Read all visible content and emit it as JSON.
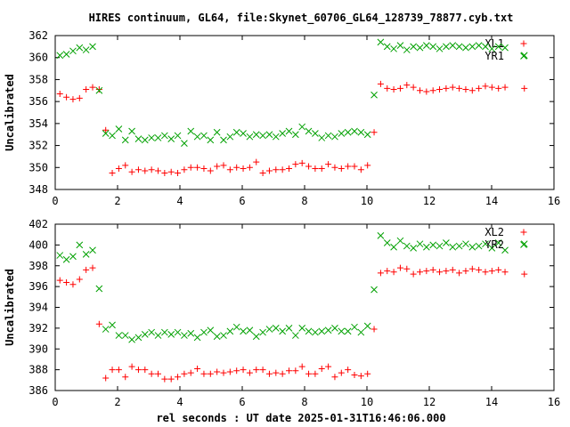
{
  "title": "HIRES continuum, GL64, file:Skynet_60706_GL64_128739_78877.cyb.txt",
  "xlabel": "rel seconds : UT date 2025-01-31T16:46:06.000",
  "colors": {
    "red": "#ff0000",
    "green": "#00a000"
  },
  "chart_data": [
    {
      "type": "scatter",
      "ylabel": "Uncalibrated",
      "xlim": [
        0,
        16
      ],
      "ylim": [
        348,
        362
      ],
      "xticks": [
        0,
        2,
        4,
        6,
        8,
        10,
        12,
        14,
        16
      ],
      "yticks": [
        348,
        350,
        352,
        354,
        356,
        358,
        360,
        362
      ],
      "grid": false,
      "legend_position": "top-right",
      "series": [
        {
          "name": "XL1",
          "marker": "plus",
          "color": "#ff0000",
          "x": [
            0.15,
            0.36,
            0.57,
            0.78,
            0.99,
            1.2,
            1.41,
            1.62,
            1.83,
            2.04,
            2.25,
            2.46,
            2.67,
            2.88,
            3.09,
            3.3,
            3.51,
            3.72,
            3.93,
            4.14,
            4.35,
            4.56,
            4.77,
            4.98,
            5.19,
            5.4,
            5.61,
            5.82,
            6.03,
            6.24,
            6.45,
            6.66,
            6.87,
            7.08,
            7.29,
            7.5,
            7.71,
            7.92,
            8.13,
            8.34,
            8.55,
            8.76,
            8.97,
            9.18,
            9.39,
            9.6,
            9.81,
            10.02,
            10.23,
            10.44,
            10.65,
            10.86,
            11.07,
            11.28,
            11.49,
            11.7,
            11.91,
            12.12,
            12.33,
            12.54,
            12.75,
            12.96,
            13.17,
            13.38,
            13.59,
            13.8,
            14.01,
            14.22,
            14.43,
            15.05
          ],
          "y": [
            356.7,
            356.4,
            356.2,
            356.3,
            357.1,
            357.3,
            357.1,
            353.4,
            349.5,
            349.9,
            350.2,
            349.6,
            349.8,
            349.7,
            349.8,
            349.7,
            349.5,
            349.6,
            349.5,
            349.8,
            350.0,
            350.0,
            349.9,
            349.7,
            350.1,
            350.2,
            349.8,
            350.0,
            349.9,
            350.0,
            350.5,
            349.5,
            349.7,
            349.8,
            349.8,
            349.9,
            350.3,
            350.4,
            350.1,
            349.9,
            349.9,
            350.3,
            350.0,
            349.9,
            350.1,
            350.1,
            349.8,
            350.2,
            353.2,
            357.6,
            357.2,
            357.1,
            357.2,
            357.5,
            357.3,
            357.0,
            356.9,
            357.0,
            357.1,
            357.2,
            357.3,
            357.2,
            357.1,
            357.0,
            357.2,
            357.4,
            357.3,
            357.2,
            357.3,
            357.2
          ],
          "note": ""
        },
        {
          "name": "YR1",
          "marker": "cross",
          "color": "#00a000",
          "x": [
            0.15,
            0.36,
            0.57,
            0.78,
            0.99,
            1.2,
            1.41,
            1.62,
            1.83,
            2.04,
            2.25,
            2.46,
            2.67,
            2.88,
            3.09,
            3.3,
            3.51,
            3.72,
            3.93,
            4.14,
            4.35,
            4.56,
            4.77,
            4.98,
            5.19,
            5.4,
            5.61,
            5.82,
            6.03,
            6.24,
            6.45,
            6.66,
            6.87,
            7.08,
            7.29,
            7.5,
            7.71,
            7.92,
            8.13,
            8.34,
            8.55,
            8.76,
            8.97,
            9.18,
            9.39,
            9.6,
            9.81,
            10.02,
            10.23,
            10.44,
            10.65,
            10.86,
            11.07,
            11.28,
            11.49,
            11.7,
            11.91,
            12.12,
            12.33,
            12.54,
            12.75,
            12.96,
            13.17,
            13.38,
            13.59,
            13.8,
            14.01,
            14.22,
            14.43,
            15.05
          ],
          "y": [
            360.2,
            360.3,
            360.6,
            360.9,
            360.7,
            361.0,
            357.0,
            353.1,
            352.9,
            353.5,
            352.5,
            353.3,
            352.6,
            352.5,
            352.7,
            352.7,
            352.9,
            352.6,
            352.9,
            352.2,
            353.3,
            352.8,
            352.9,
            352.5,
            353.2,
            352.5,
            352.8,
            353.2,
            353.1,
            352.8,
            353.0,
            352.9,
            353.0,
            352.8,
            353.1,
            353.3,
            353.0,
            353.7,
            353.3,
            353.1,
            352.7,
            352.9,
            352.8,
            353.1,
            353.2,
            353.3,
            353.2,
            353.0,
            356.6,
            361.4,
            361.0,
            360.8,
            361.1,
            360.7,
            361.0,
            360.9,
            361.1,
            361.0,
            360.8,
            361.0,
            361.1,
            361.0,
            360.9,
            361.0,
            361.1,
            361.0,
            360.8,
            361.0,
            360.9,
            360.2
          ],
          "note": ""
        }
      ]
    },
    {
      "type": "scatter",
      "ylabel": "Uncalibrated",
      "xlim": [
        0,
        16
      ],
      "ylim": [
        386,
        402
      ],
      "xticks": [
        0,
        2,
        4,
        6,
        8,
        10,
        12,
        14,
        16
      ],
      "yticks": [
        386,
        388,
        390,
        392,
        394,
        396,
        398,
        400,
        402
      ],
      "grid": false,
      "legend_position": "top-right",
      "series": [
        {
          "name": "XL2",
          "marker": "plus",
          "color": "#ff0000",
          "x": [
            0.15,
            0.36,
            0.57,
            0.78,
            0.99,
            1.2,
            1.41,
            1.62,
            1.83,
            2.04,
            2.25,
            2.46,
            2.67,
            2.88,
            3.09,
            3.3,
            3.51,
            3.72,
            3.93,
            4.14,
            4.35,
            4.56,
            4.77,
            4.98,
            5.19,
            5.4,
            5.61,
            5.82,
            6.03,
            6.24,
            6.45,
            6.66,
            6.87,
            7.08,
            7.29,
            7.5,
            7.71,
            7.92,
            8.13,
            8.34,
            8.55,
            8.76,
            8.97,
            9.18,
            9.39,
            9.6,
            9.81,
            10.02,
            10.23,
            10.44,
            10.65,
            10.86,
            11.07,
            11.28,
            11.49,
            11.7,
            11.91,
            12.12,
            12.33,
            12.54,
            12.75,
            12.96,
            13.17,
            13.38,
            13.59,
            13.8,
            14.01,
            14.22,
            14.43,
            15.05
          ],
          "y": [
            396.6,
            396.4,
            396.2,
            396.7,
            397.6,
            397.8,
            392.4,
            387.2,
            388.0,
            388.0,
            387.3,
            388.3,
            388.0,
            388.0,
            387.6,
            387.6,
            387.1,
            387.1,
            387.3,
            387.6,
            387.7,
            388.1,
            387.6,
            387.6,
            387.8,
            387.7,
            387.8,
            387.9,
            388.0,
            387.7,
            388.0,
            388.0,
            387.6,
            387.7,
            387.6,
            387.9,
            387.9,
            388.3,
            387.6,
            387.6,
            388.1,
            388.3,
            387.3,
            387.7,
            388.0,
            387.5,
            387.4,
            387.6,
            391.9,
            397.3,
            397.5,
            397.4,
            397.8,
            397.7,
            397.2,
            397.4,
            397.5,
            397.6,
            397.4,
            397.5,
            397.6,
            397.3,
            397.5,
            397.7,
            397.6,
            397.4,
            397.5,
            397.6,
            397.4,
            397.2
          ],
          "note": ""
        },
        {
          "name": "YR2",
          "marker": "cross",
          "color": "#00a000",
          "x": [
            0.15,
            0.36,
            0.57,
            0.78,
            0.99,
            1.2,
            1.41,
            1.62,
            1.83,
            2.04,
            2.25,
            2.46,
            2.67,
            2.88,
            3.09,
            3.3,
            3.51,
            3.72,
            3.93,
            4.14,
            4.35,
            4.56,
            4.77,
            4.98,
            5.19,
            5.4,
            5.61,
            5.82,
            6.03,
            6.24,
            6.45,
            6.66,
            6.87,
            7.08,
            7.29,
            7.5,
            7.71,
            7.92,
            8.13,
            8.34,
            8.55,
            8.76,
            8.97,
            9.18,
            9.39,
            9.6,
            9.81,
            10.02,
            10.23,
            10.44,
            10.65,
            10.86,
            11.07,
            11.28,
            11.49,
            11.7,
            11.91,
            12.12,
            12.33,
            12.54,
            12.75,
            12.96,
            13.17,
            13.38,
            13.59,
            13.8,
            14.01,
            14.22,
            14.43,
            15.05
          ],
          "y": [
            399.0,
            398.6,
            398.9,
            400.0,
            399.1,
            399.5,
            395.8,
            391.9,
            392.3,
            391.3,
            391.3,
            390.9,
            391.1,
            391.4,
            391.6,
            391.3,
            391.6,
            391.4,
            391.6,
            391.3,
            391.5,
            391.1,
            391.6,
            391.8,
            391.2,
            391.3,
            391.7,
            392.1,
            391.7,
            391.8,
            391.2,
            391.6,
            391.9,
            392.0,
            391.7,
            392.0,
            391.3,
            392.0,
            391.7,
            391.6,
            391.7,
            391.8,
            392.0,
            391.7,
            391.7,
            392.1,
            391.6,
            392.2,
            395.7,
            400.9,
            400.2,
            399.8,
            400.4,
            399.9,
            399.7,
            400.1,
            399.8,
            400.0,
            399.9,
            400.2,
            399.8,
            399.9,
            400.1,
            399.8,
            399.9,
            400.1,
            399.7,
            400.2,
            399.5,
            400.1
          ],
          "note": ""
        }
      ]
    }
  ]
}
